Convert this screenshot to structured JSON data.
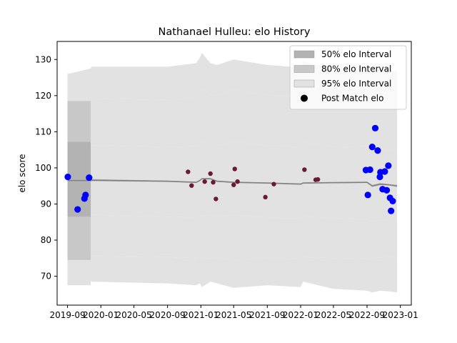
{
  "chart_data": {
    "type": "scatter",
    "title": "Nathanael Hulleu: elo History",
    "xlabel": "",
    "ylabel": "elo score",
    "x_scale": "date",
    "xlim": [
      "2019-07-25",
      "2023-02-10"
    ],
    "ylim": [
      62,
      135
    ],
    "x_ticks": [
      "2019-09",
      "2020-01",
      "2020-05",
      "2020-09",
      "2021-01",
      "2021-05",
      "2021-09",
      "2022-01",
      "2022-05",
      "2022-09",
      "2023-01"
    ],
    "x_tick_dates": [
      "2019-09-01",
      "2020-01-01",
      "2020-05-01",
      "2020-09-01",
      "2021-01-01",
      "2021-05-01",
      "2021-09-01",
      "2022-01-01",
      "2022-05-01",
      "2022-09-01",
      "2023-01-01"
    ],
    "y_ticks": [
      70,
      80,
      90,
      100,
      110,
      120,
      130
    ],
    "grid": false,
    "legend_placement": "top-right",
    "legend": [
      {
        "label": "50% elo Interval",
        "kind": "band",
        "color": "#b3b3b3"
      },
      {
        "label": "80% elo Interval",
        "kind": "band",
        "color": "#c8c8c8"
      },
      {
        "label": "95% elo Interval",
        "kind": "band",
        "color": "#e2e2e2"
      },
      {
        "label": "Post Match elo",
        "kind": "marker",
        "color": "#000000"
      }
    ],
    "colors": {
      "band_50": "#b3b3b3",
      "band_80": "#c8c8c8",
      "band_95": "#e2e2e2",
      "line": "#808080",
      "points_dark": "#6b1a33",
      "points_blue": "#0000ff"
    },
    "band_x": [
      "2019-09-01",
      "2019-11-25",
      "2019-11-27",
      "2020-09-01",
      "2020-12-15",
      "2020-12-28",
      "2021-01-05",
      "2021-02-05",
      "2021-03-01",
      "2021-05-01",
      "2021-09-01",
      "2022-01-01",
      "2022-01-10",
      "2022-05-01",
      "2022-09-01",
      "2022-09-20",
      "2022-10-20",
      "2022-11-20",
      "2022-12-20"
    ],
    "mean": [
      96.5,
      96.5,
      96.6,
      96.3,
      96.0,
      96.5,
      97.0,
      97.0,
      96.3,
      96.0,
      95.8,
      95.5,
      95.8,
      95.9,
      96.0,
      95.0,
      95.5,
      95.3,
      95.0
    ],
    "band_50": {
      "upper": [
        96.9,
        96.9,
        96.9,
        96.5,
        96.2,
        96.7,
        97.2,
        97.2,
        96.5,
        96.2,
        96.0,
        95.7,
        96.0,
        96.1,
        96.2,
        95.3,
        95.8,
        95.5,
        95.3
      ],
      "lower": [
        96.1,
        96.1,
        96.3,
        96.1,
        95.8,
        96.3,
        96.8,
        96.8,
        96.1,
        95.8,
        95.6,
        95.3,
        95.6,
        95.7,
        95.8,
        94.7,
        95.2,
        95.1,
        94.7
      ]
    },
    "band_80": {
      "upper": [
        107.2,
        107.2,
        106.3,
        105.8,
        106.0,
        106.8,
        107.5,
        106.8,
        106.2,
        107.4,
        106.2,
        105.8,
        107.2,
        105.8,
        106.0,
        105.0,
        105.2,
        105.0,
        104.8
      ],
      "lower": [
        86.5,
        86.5,
        87.0,
        86.5,
        86.2,
        86.8,
        86.9,
        86.8,
        86.5,
        86.8,
        86.3,
        85.8,
        86.6,
        86.0,
        85.8,
        85.2,
        85.5,
        85.4,
        85.2
      ]
    },
    "band_95": {
      "upper": [
        118.5,
        118.5,
        119.2,
        118.8,
        119.5,
        120.5,
        121.8,
        120.2,
        120.0,
        121.5,
        120.2,
        119.5,
        121.0,
        119.0,
        119.2,
        118.5,
        118.8,
        118.2,
        117.8
      ],
      "lower": [
        74.5,
        74.5,
        75.5,
        75.3,
        75.0,
        75.5,
        74.8,
        75.0,
        75.2,
        74.5,
        75.1,
        74.6,
        75.3,
        75.0,
        74.8,
        75.0,
        75.2,
        75.3,
        75.2
      ]
    },
    "band_99_upper": [
      126.0,
      127.5,
      128.0,
      128.0,
      129.0,
      130.5,
      131.8,
      129.0,
      128.5,
      130.0,
      128.5,
      127.8,
      129.5,
      127.5,
      127.8,
      127.2,
      127.5,
      127.0,
      126.8
    ],
    "band_99_lower": [
      67.5,
      69.0,
      68.5,
      68.0,
      67.5,
      68.0,
      67.0,
      68.5,
      68.0,
      66.8,
      67.5,
      67.0,
      68.5,
      66.5,
      66.0,
      65.5,
      66.0,
      65.8,
      65.5
    ],
    "series": [
      {
        "color": "#6b1a33",
        "x": [
          "2019-09-03",
          "2019-10-08",
          "2019-11-01",
          "2019-11-05",
          "2019-11-18",
          "2020-11-15",
          "2020-11-28",
          "2021-01-15",
          "2021-02-05",
          "2021-02-15",
          "2021-02-25",
          "2021-05-01",
          "2021-05-05",
          "2021-05-15",
          "2021-08-25",
          "2021-09-25",
          "2022-01-15",
          "2022-02-25",
          "2022-03-05"
        ],
        "y": [
          97.5,
          88.5,
          91.5,
          92.5,
          97.3,
          98.9,
          95.1,
          96.2,
          98.4,
          96.0,
          91.4,
          95.3,
          99.7,
          96.2,
          91.9,
          95.5,
          99.5,
          96.7,
          96.8
        ]
      },
      {
        "color": "#0000ff",
        "x": [
          "2019-09-02",
          "2019-10-08",
          "2019-11-02",
          "2019-11-06",
          "2019-11-19",
          "2022-08-28",
          "2022-09-04",
          "2022-09-12",
          "2022-09-20",
          "2022-10-01",
          "2022-10-10",
          "2022-10-18",
          "2022-10-20",
          "2022-10-28",
          "2022-11-05",
          "2022-11-12",
          "2022-11-18",
          "2022-11-24",
          "2022-11-28",
          "2022-12-04"
        ],
        "y": [
          97.5,
          88.5,
          91.5,
          92.5,
          97.3,
          99.4,
          92.5,
          99.5,
          105.8,
          111.0,
          104.8,
          97.5,
          98.8,
          94.1,
          99.0,
          93.8,
          100.6,
          91.7,
          88.1,
          90.8
        ]
      }
    ]
  }
}
